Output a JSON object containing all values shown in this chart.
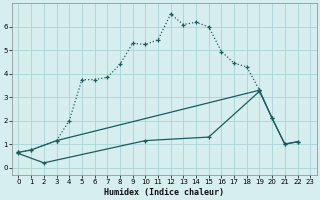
{
  "xlabel": "Humidex (Indice chaleur)",
  "background_color": "#d6eeee",
  "grid_color": "#aad4d4",
  "line_color": "#1a5c5c",
  "ylim": [
    -0.3,
    7.0
  ],
  "xlim": [
    -0.5,
    23.5
  ],
  "yticks": [
    0,
    1,
    2,
    3,
    4,
    5,
    6
  ],
  "xticks": [
    0,
    1,
    2,
    3,
    4,
    5,
    6,
    7,
    8,
    9,
    10,
    11,
    12,
    13,
    14,
    15,
    16,
    17,
    18,
    19,
    20,
    21,
    22,
    23
  ],
  "line1_x": [
    0,
    1,
    3,
    4,
    5,
    6,
    7,
    8,
    9,
    10,
    11,
    12,
    13,
    14,
    15,
    16,
    17,
    18,
    19
  ],
  "line1_y": [
    0.65,
    0.75,
    1.15,
    2.0,
    3.75,
    3.75,
    3.85,
    4.4,
    5.3,
    5.25,
    5.45,
    6.55,
    6.1,
    6.2,
    6.0,
    4.95,
    4.45,
    4.3,
    3.3
  ],
  "line2_x": [
    0,
    1,
    3,
    19,
    20,
    21,
    22
  ],
  "line2_y": [
    0.65,
    0.75,
    1.15,
    3.3,
    2.1,
    1.0,
    1.1
  ],
  "line3_x": [
    0,
    2,
    10,
    15,
    19,
    20,
    21,
    22
  ],
  "line3_y": [
    0.6,
    0.2,
    1.15,
    1.3,
    3.25,
    2.1,
    1.0,
    1.1
  ]
}
